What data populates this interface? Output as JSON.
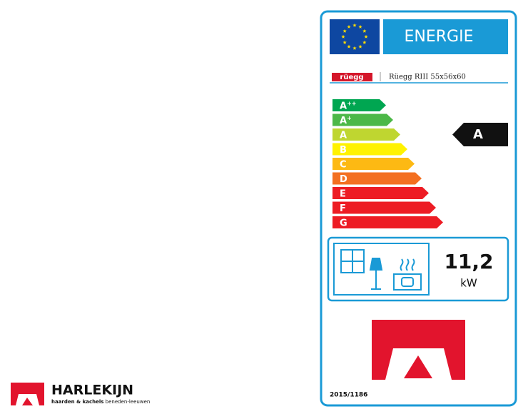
{
  "label": {
    "energy": "ENERGIE",
    "brand": "rüegg",
    "model": "Rüegg RIII 55x56x60",
    "classes": [
      {
        "letter": "A",
        "sup": "++"
      },
      {
        "letter": "A",
        "sup": "+"
      },
      {
        "letter": "A"
      },
      {
        "letter": "B"
      },
      {
        "letter": "C"
      },
      {
        "letter": "D"
      },
      {
        "letter": "E"
      },
      {
        "letter": "F"
      },
      {
        "letter": "G"
      }
    ],
    "rating": "A",
    "power": "11,2",
    "unit": "kW",
    "regulation": "2015/1186"
  },
  "company": {
    "name": "HARLEKIJN",
    "tagline_bold": "haarden & kachels",
    "tagline": "beneden-leeuwen"
  }
}
